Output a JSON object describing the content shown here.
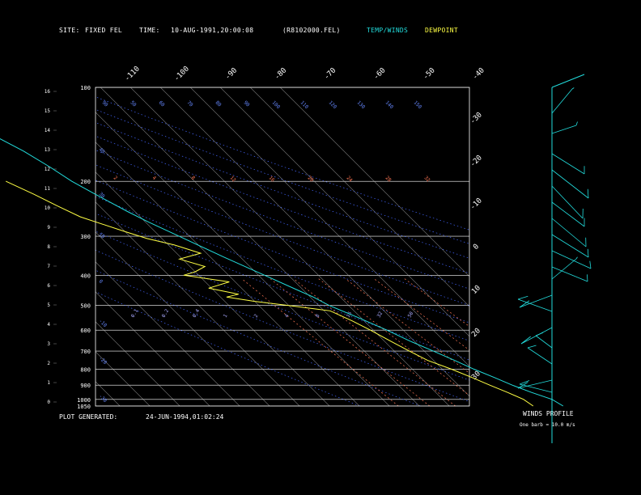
{
  "header": {
    "site_label": "SITE:",
    "site_value": "FIXED FEL",
    "time_label": "TIME:",
    "time_value": "10-AUG-1991,20:00:08",
    "file": "(R8102000.FEL)",
    "legend_temp": "TEMP/WINDS",
    "legend_dew": "DEWPOINT"
  },
  "footer": {
    "generated_label": "PLOT GENERATED:",
    "generated_value": "24-JUN-1994,01:02:24",
    "winds_title": "WINDS PROFILE",
    "barb_note": "One barb = 10.0 m/s"
  },
  "colors": {
    "temp": "#22dddd",
    "dew": "#ffff44",
    "grid": "#ffffff",
    "dry_adiabat": "#4466ff",
    "mixing_ratio": "#ff7755",
    "isotherm": "#cccccc"
  },
  "chart_data": {
    "type": "line",
    "title": "",
    "y_axis": "pressure (hPa, log scale)",
    "pressure_labels": [
      100,
      200,
      300,
      400,
      500,
      600,
      700,
      800,
      900,
      1000,
      1050
    ],
    "height_km_labels": [
      16,
      15,
      14,
      13,
      12,
      11,
      10,
      9,
      8,
      7,
      6,
      5,
      4,
      3,
      2,
      1,
      0
    ],
    "top_isotherm_labels": [
      -110,
      -100,
      -90,
      -80,
      -70,
      -60,
      -50,
      -40
    ],
    "right_isotherm_labels": [
      -30,
      -20,
      -10,
      0,
      10,
      20,
      30
    ],
    "potential_temp_labels": [
      "150",
      "110",
      "90",
      "70",
      "50",
      "30",
      "10",
      "130",
      "110",
      "90",
      "70",
      "50"
    ],
    "dry_adiabat_top_labels": [
      "90",
      "50",
      "60",
      "70",
      "80",
      "90",
      "100",
      "110",
      "120",
      "130",
      "140",
      "150"
    ],
    "dry_adiabat_left_labels": [
      "40",
      "30",
      "10",
      "0",
      "-10",
      "-20",
      "-30"
    ],
    "mixing_ratio_labels": [
      "2",
      "4",
      "8",
      "12",
      "16",
      "20",
      "24",
      "28",
      "32"
    ],
    "mixing_ratio_low_labels": [
      "0.1",
      "0.2",
      "0.4",
      "1",
      "2",
      "4",
      "8",
      "16",
      "32",
      "50"
    ],
    "series": [
      {
        "name": "TEMP/WINDS",
        "points": [
          [
            1050,
            28
          ],
          [
            1000,
            26.5
          ],
          [
            950,
            22
          ],
          [
            900,
            18
          ],
          [
            850,
            14.5
          ],
          [
            800,
            10.5
          ],
          [
            750,
            7
          ],
          [
            700,
            3
          ],
          [
            650,
            -1.5
          ],
          [
            600,
            -5.5
          ],
          [
            550,
            -10.5
          ],
          [
            500,
            -16.5
          ],
          [
            470,
            -19
          ],
          [
            450,
            -21.5
          ],
          [
            400,
            -28
          ],
          [
            350,
            -35.5
          ],
          [
            300,
            -43.5
          ],
          [
            270,
            -49
          ],
          [
            250,
            -52.5
          ],
          [
            220,
            -57.5
          ],
          [
            200,
            -61
          ],
          [
            180,
            -63.5
          ],
          [
            160,
            -67
          ],
          [
            140,
            -72.5
          ],
          [
            125,
            -76
          ],
          [
            110,
            -76.5
          ],
          [
            100,
            -75
          ]
        ]
      },
      {
        "name": "DEWPOINT",
        "points": [
          [
            1050,
            18
          ],
          [
            1000,
            17
          ],
          [
            950,
            14
          ],
          [
            900,
            10.5
          ],
          [
            850,
            7
          ],
          [
            800,
            3
          ],
          [
            750,
            -2
          ],
          [
            700,
            -5
          ],
          [
            650,
            -8
          ],
          [
            600,
            -11
          ],
          [
            560,
            -14
          ],
          [
            520,
            -18
          ],
          [
            500,
            -30
          ],
          [
            485,
            -40
          ],
          [
            470,
            -48
          ],
          [
            460,
            -43
          ],
          [
            440,
            -51
          ],
          [
            420,
            -42
          ],
          [
            400,
            -55
          ],
          [
            390,
            -50
          ],
          [
            375,
            -45
          ],
          [
            355,
            -51
          ],
          [
            340,
            -42
          ],
          [
            320,
            -48
          ],
          [
            305,
            -55
          ],
          [
            290,
            -60
          ],
          [
            260,
            -70
          ],
          [
            240,
            -74
          ],
          [
            220,
            -78
          ],
          [
            200,
            -83
          ]
        ]
      }
    ]
  }
}
